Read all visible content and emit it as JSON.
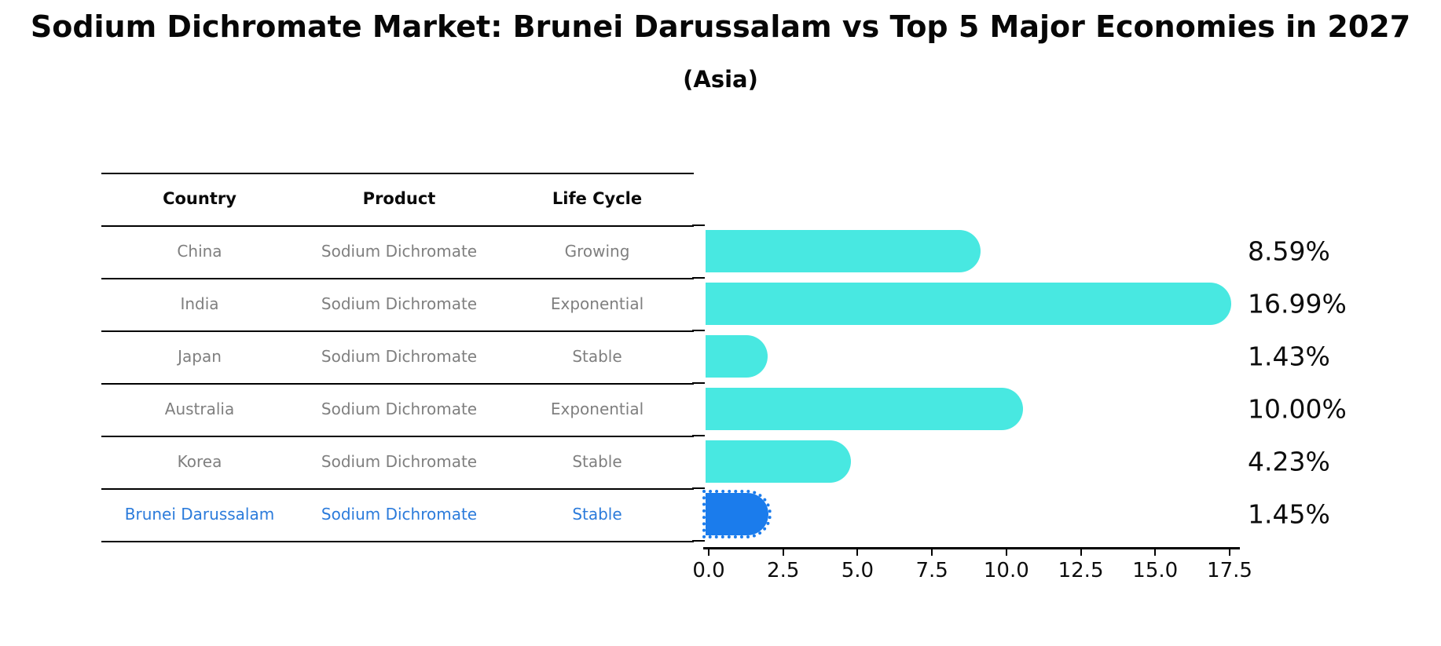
{
  "title": "Sodium Dichromate Market: Brunei Darussalam vs Top 5 Major Economies in 2027",
  "subtitle": "(Asia)",
  "table": {
    "headers": [
      "Country",
      "Product",
      "Life Cycle"
    ],
    "rows": [
      {
        "country": "China",
        "product": "Sodium Dichromate",
        "life_cycle": "Growing",
        "highlight": false
      },
      {
        "country": "India",
        "product": "Sodium Dichromate",
        "life_cycle": "Exponential",
        "highlight": false
      },
      {
        "country": "Japan",
        "product": "Sodium Dichromate",
        "life_cycle": "Stable",
        "highlight": false
      },
      {
        "country": "Australia",
        "product": "Sodium Dichromate",
        "life_cycle": "Exponential",
        "highlight": false
      },
      {
        "country": "Korea",
        "product": "Sodium Dichromate",
        "life_cycle": "Stable",
        "highlight": false
      },
      {
        "country": "Brunei Darussalam",
        "product": "Sodium Dichromate",
        "life_cycle": "Stable",
        "highlight": true
      }
    ]
  },
  "chart_data": {
    "type": "bar",
    "orientation": "horizontal",
    "title": "Sodium Dichromate Market: Brunei Darussalam vs Top 5 Major Economies in 2027",
    "subtitle": "(Asia)",
    "categories": [
      "China",
      "India",
      "Japan",
      "Australia",
      "Korea",
      "Brunei Darussalam"
    ],
    "values": [
      8.59,
      16.99,
      1.43,
      10.0,
      4.23,
      1.45
    ],
    "value_labels": [
      "8.59%",
      "16.99%",
      "1.43%",
      "10.00%",
      "4.23%",
      "1.45%"
    ],
    "xlim": [
      0,
      17.5
    ],
    "xtick_labels": [
      "0.0",
      "2.5",
      "5.0",
      "7.5",
      "10.0",
      "12.5",
      "15.0",
      "17.5"
    ],
    "grid": false,
    "legend": false,
    "bar_color": "#48e8e1",
    "highlight_index": 5,
    "highlight_color": "#1b7cec",
    "highlight_text_color": "#2b7bdb"
  }
}
